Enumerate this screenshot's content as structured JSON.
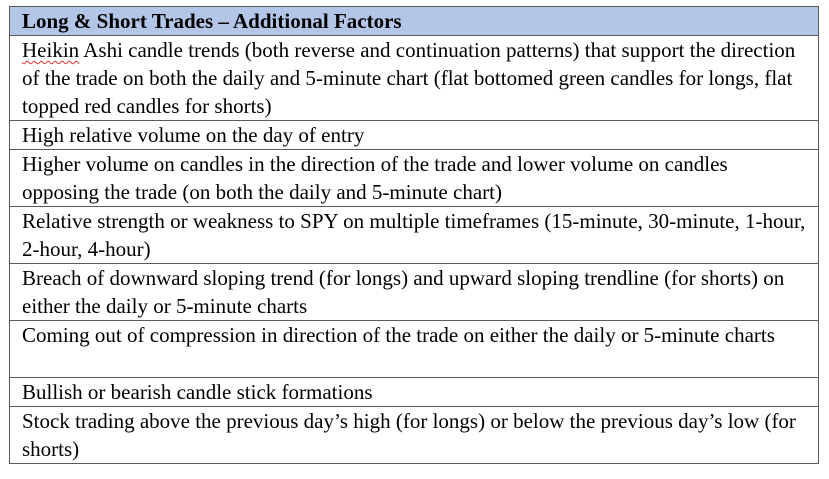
{
  "table": {
    "header": "Long & Short Trades – Additional Factors",
    "rows": [
      {
        "lead": "Heikin",
        "text": " Ashi candle trends (both reverse and continuation patterns) that support the direction of the trade on both the daily and 5-minute chart (flat bottomed green candles for longs, flat topped red candles for shorts)"
      },
      {
        "text": "High relative volume on the day of entry"
      },
      {
        "text": "Higher volume on candles in the direction of the trade and lower volume on candles opposing the trade (on both the daily and 5-minute chart)"
      },
      {
        "text": "Relative strength or weakness to SPY on multiple timeframes (15-minute, 30-minute, 1-hour, 2-hour, 4-hour)"
      },
      {
        "text": "Breach of downward sloping trend (for longs) and upward sloping trendline (for shorts) on either the daily or 5-minute charts"
      },
      {
        "text": "Coming out of compression in direction of the trade on either the daily or 5-minute charts"
      },
      {
        "text": "Bullish or bearish candle stick formations"
      },
      {
        "text": "Stock trading above the previous day’s high (for longs) or below the previous day’s low (for shorts)"
      }
    ]
  },
  "colors": {
    "header_bg": "#b4c6e7",
    "border": "#5a5a5a",
    "spellcheck_underline": "#e0312a"
  }
}
